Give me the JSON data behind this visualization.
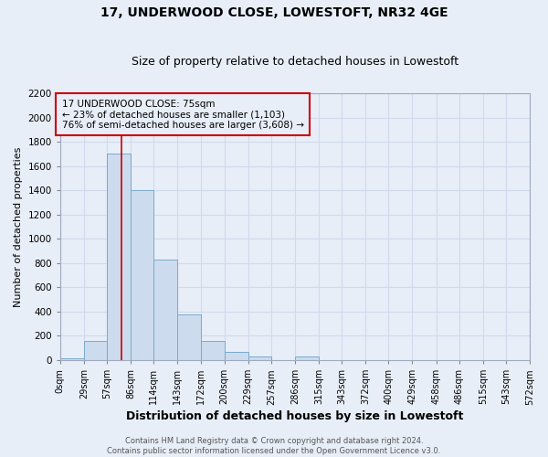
{
  "title": "17, UNDERWOOD CLOSE, LOWESTOFT, NR32 4GE",
  "subtitle": "Size of property relative to detached houses in Lowestoft",
  "xlabel": "Distribution of detached houses by size in Lowestoft",
  "ylabel": "Number of detached properties",
  "bin_edges": [
    0,
    29,
    57,
    86,
    114,
    143,
    172,
    200,
    229,
    257,
    286,
    315,
    343,
    372,
    400,
    429,
    458,
    486,
    515,
    543,
    572
  ],
  "bin_labels": [
    "0sqm",
    "29sqm",
    "57sqm",
    "86sqm",
    "114sqm",
    "143sqm",
    "172sqm",
    "200sqm",
    "229sqm",
    "257sqm",
    "286sqm",
    "315sqm",
    "343sqm",
    "372sqm",
    "400sqm",
    "429sqm",
    "458sqm",
    "486sqm",
    "515sqm",
    "543sqm",
    "572sqm"
  ],
  "bar_heights": [
    15,
    160,
    1700,
    1400,
    830,
    380,
    160,
    65,
    30,
    0,
    30,
    0,
    0,
    0,
    0,
    0,
    0,
    0,
    0,
    0
  ],
  "bar_color": "#ccdcee",
  "bar_edge_color": "#7aaaca",
  "ylim": [
    0,
    2200
  ],
  "yticks": [
    0,
    200,
    400,
    600,
    800,
    1000,
    1200,
    1400,
    1600,
    1800,
    2000,
    2200
  ],
  "vline_x": 75,
  "vline_color": "#cc0000",
  "annotation_title": "17 UNDERWOOD CLOSE: 75sqm",
  "annotation_line1": "← 23% of detached houses are smaller (1,103)",
  "annotation_line2": "76% of semi-detached houses are larger (3,608) →",
  "annotation_box_color": "#cc0000",
  "footer_line1": "Contains HM Land Registry data © Crown copyright and database right 2024.",
  "footer_line2": "Contains public sector information licensed under the Open Government Licence v3.0.",
  "grid_color": "#d0daec",
  "background_color": "#e8eef8",
  "plot_bg_color": "#e8eef8",
  "title_fontsize": 10,
  "subtitle_fontsize": 9
}
